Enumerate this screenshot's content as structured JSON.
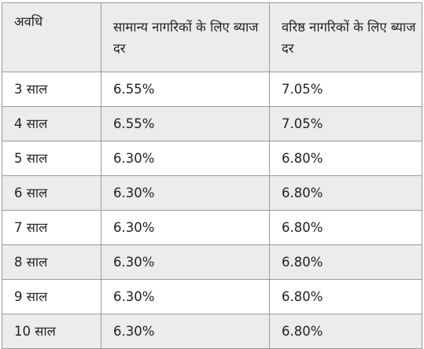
{
  "table": {
    "headers": [
      "अवधि",
      "सामान्य नागरिकों के लिए ब्याज दर",
      "वरिष्ठ नागरिकों के लिए ब्याज दर"
    ],
    "rows": [
      [
        "3 साल",
        "6.55%",
        "7.05%"
      ],
      [
        "4 साल",
        "6.55%",
        "7.05%"
      ],
      [
        "5 साल",
        "6.30%",
        "6.80%"
      ],
      [
        "6 साल",
        "6.30%",
        "6.80%"
      ],
      [
        "7 साल",
        "6.30%",
        "6.80%"
      ],
      [
        "8 साल",
        "6.30%",
        "6.80%"
      ],
      [
        "9 साल",
        "6.30%",
        "6.80%"
      ],
      [
        "10 साल",
        "6.30%",
        "6.80%"
      ]
    ]
  },
  "colors": {
    "header_background": "#ececec",
    "alternate_row_background": "#ececec",
    "border": "#9a9a9a",
    "text": "#222222"
  }
}
